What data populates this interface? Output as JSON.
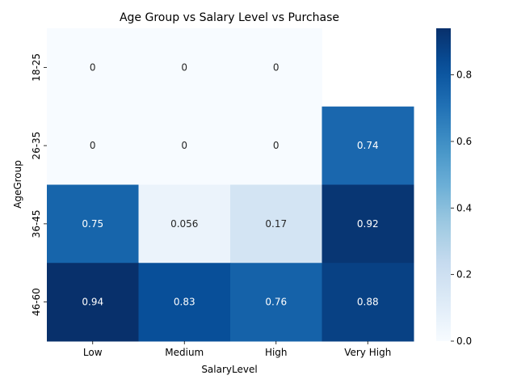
{
  "chart_data": {
    "type": "heatmap",
    "title": "Age Group vs Salary Level vs Purchase",
    "xlabel": "SalaryLevel",
    "ylabel": "AgeGroup",
    "x_categories": [
      "Low",
      "Medium",
      "High",
      "Very High"
    ],
    "y_categories": [
      "18-25",
      "26-35",
      "36-45",
      "46-60"
    ],
    "values": [
      [
        0,
        0,
        0,
        null
      ],
      [
        0,
        0,
        0,
        0.74
      ],
      [
        0.75,
        0.056,
        0.17,
        0.92
      ],
      [
        0.94,
        0.83,
        0.76,
        0.88
      ]
    ],
    "value_labels": [
      [
        "0",
        "0",
        "0",
        ""
      ],
      [
        "0",
        "0",
        "0",
        "0.74"
      ],
      [
        "0.75",
        "0.056",
        "0.17",
        "0.92"
      ],
      [
        "0.94",
        "0.83",
        "0.76",
        "0.88"
      ]
    ],
    "colormap": "Blues",
    "vmin": 0,
    "vmax": 0.94,
    "colorbar_ticks": [
      "0.0",
      "0.2",
      "0.4",
      "0.6",
      "0.8"
    ],
    "colorbar_tick_values": [
      0,
      0.2,
      0.4,
      0.6,
      0.8
    ]
  }
}
